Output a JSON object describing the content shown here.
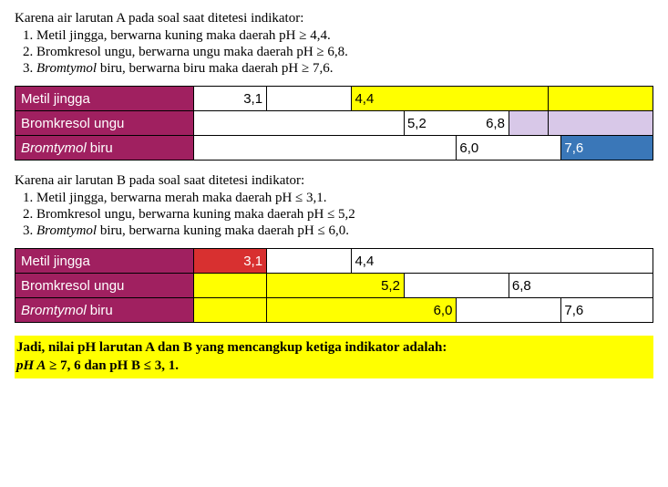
{
  "colors": {
    "label_bg": "#a02060",
    "label_text": "#ffffff",
    "yellow": "#ffff00",
    "lav": "#d8c8e8",
    "blue": "#3a77b8",
    "red": "#d83030",
    "white": "#ffffff",
    "border": "#000000",
    "highlight": "#ffff00"
  },
  "typography": {
    "body_font": "Times New Roman",
    "ui_font": "Arial",
    "body_size_pt": 12,
    "ui_size_pt": 11
  },
  "sectionA": {
    "intro": "Karena air larutan A pada soal saat ditetesi indikator:",
    "items": [
      "Metil jingga, berwarna kuning maka daerah pH ≥ 4,4.",
      "Bromkresol ungu, berwarna ungu maka daerah pH ≥ 6,8.",
      "Bromtymol biru, berwarna biru maka daerah pH ≥ 7,6."
    ],
    "items_italic_prefix": [
      "",
      "",
      "Bromtymol"
    ],
    "items_rest": [
      "",
      "",
      " biru, berwarna biru maka daerah pH ≥ 7,6."
    ]
  },
  "chartA": {
    "track_scale_min": 2.0,
    "track_scale_max": 9.0,
    "rows": [
      {
        "label_plain": "Metil jingga",
        "label_italic": "",
        "segs": [
          {
            "from": 2.0,
            "to": 3.1,
            "color": "#ffffff"
          },
          {
            "from": 3.1,
            "to": 4.4,
            "color": "#ffffff"
          },
          {
            "from": 4.4,
            "to": 7.4,
            "color": "#ffff00"
          },
          {
            "from": 7.4,
            "to": 9.0,
            "color": "#ffff00"
          }
        ],
        "nums": [
          {
            "text": "3,1",
            "at": 3.1,
            "align": "left-of"
          },
          {
            "text": "4,4",
            "at": 4.4,
            "align": "right-of"
          }
        ]
      },
      {
        "label_plain": "Bromkresol ungu",
        "label_italic": "",
        "segs": [
          {
            "from": 2.0,
            "to": 5.2,
            "color": "#ffffff"
          },
          {
            "from": 5.2,
            "to": 6.8,
            "color": "#ffffff"
          },
          {
            "from": 6.8,
            "to": 7.4,
            "color": "#d8c8e8"
          },
          {
            "from": 7.4,
            "to": 9.0,
            "color": "#d8c8e8"
          }
        ],
        "nums": [
          {
            "text": "5,2",
            "at": 5.2,
            "align": "right-of"
          },
          {
            "text": "6,8",
            "at": 6.8,
            "align": "left-of"
          }
        ]
      },
      {
        "label_plain": " biru",
        "label_italic": "Bromtymol",
        "segs": [
          {
            "from": 2.0,
            "to": 6.0,
            "color": "#ffffff"
          },
          {
            "from": 6.0,
            "to": 7.6,
            "color": "#ffffff"
          },
          {
            "from": 7.6,
            "to": 9.0,
            "color": "#3a77b8"
          }
        ],
        "nums": [
          {
            "text": "6,0",
            "at": 6.0,
            "align": "right-of"
          },
          {
            "text": "7,6",
            "at": 7.6,
            "align": "right-of",
            "color": "#ffffff"
          }
        ]
      }
    ]
  },
  "sectionB": {
    "intro": "Karena air larutan B pada soal saat ditetesi indikator:",
    "items": [
      "Metil jingga, berwarna merah maka daerah pH ≤ 3,1.",
      "Bromkresol ungu, berwarna kuning maka daerah pH ≤ 5,2",
      "Bromtymol biru, berwarna kuning maka daerah pH ≤ 6,0."
    ],
    "items_italic_prefix": [
      "",
      "",
      "Bromtymol"
    ],
    "items_rest": [
      "",
      "",
      " biru, berwarna kuning maka daerah pH ≤ 6,0."
    ]
  },
  "chartB": {
    "track_scale_min": 2.0,
    "track_scale_max": 9.0,
    "rows": [
      {
        "label_plain": "Metil jingga",
        "label_italic": "",
        "segs": [
          {
            "from": 2.0,
            "to": 3.1,
            "color": "#d83030"
          },
          {
            "from": 3.1,
            "to": 4.4,
            "color": "#ffffff"
          },
          {
            "from": 4.4,
            "to": 9.0,
            "color": "#ffffff"
          }
        ],
        "nums": [
          {
            "text": "3,1",
            "at": 3.1,
            "align": "left-of",
            "color": "#ffffff"
          },
          {
            "text": "4,4",
            "at": 4.4,
            "align": "right-of"
          }
        ]
      },
      {
        "label_plain": "Bromkresol ungu",
        "label_italic": "",
        "segs": [
          {
            "from": 2.0,
            "to": 3.1,
            "color": "#ffff00"
          },
          {
            "from": 3.1,
            "to": 5.2,
            "color": "#ffff00"
          },
          {
            "from": 5.2,
            "to": 6.8,
            "color": "#ffffff"
          },
          {
            "from": 6.8,
            "to": 9.0,
            "color": "#ffffff"
          }
        ],
        "nums": [
          {
            "text": "5,2",
            "at": 5.2,
            "align": "left-of"
          },
          {
            "text": "6,8",
            "at": 6.8,
            "align": "right-of"
          }
        ]
      },
      {
        "label_plain": " biru",
        "label_italic": "Bromtymol",
        "segs": [
          {
            "from": 2.0,
            "to": 3.1,
            "color": "#ffff00"
          },
          {
            "from": 3.1,
            "to": 6.0,
            "color": "#ffff00"
          },
          {
            "from": 6.0,
            "to": 7.6,
            "color": "#ffffff"
          },
          {
            "from": 7.6,
            "to": 9.0,
            "color": "#ffffff"
          }
        ],
        "nums": [
          {
            "text": "6,0",
            "at": 6.0,
            "align": "left-of"
          },
          {
            "text": "7,6",
            "at": 7.6,
            "align": "right-of"
          }
        ]
      }
    ]
  },
  "conclusion": {
    "line1": "Jadi, nilai pH larutan A dan B yang mencangkup ketiga indikator adalah:",
    "line2_prefix": "pH A",
    "line2_math": " ≥ 7, 6 dan pH B ≤ 3, 1."
  }
}
